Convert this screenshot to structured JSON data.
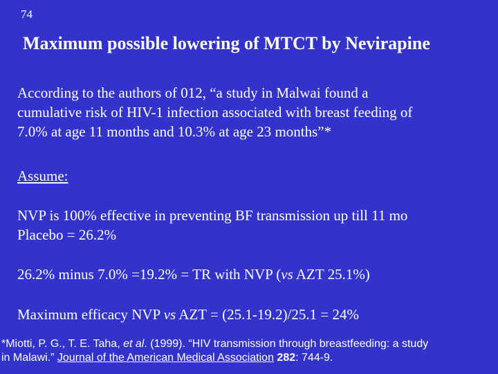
{
  "slide": {
    "number": "74",
    "title": "Maximum possible lowering of MTCT by Nevirapine",
    "quote_lines": [
      "According to the authors of 012, “a study in Malwai found a",
      "cumulative risk of HIV-1 infection associated with breast feeding of",
      "7.0% at age 11 months and 10.3% at age 23 months”*"
    ],
    "assume_heading": "Assume:",
    "assumptions": [
      "NVP is 100% effective in preventing BF transmission up till 11 mo",
      "Placebo =  26.2%"
    ],
    "calculation": {
      "prefix": "26.2% minus 7.0% =19.2% = TR with NVP (",
      "vs": "vs",
      "suffix": " AZT 25.1%)"
    },
    "efficacy": {
      "prefix": "Maximum efficacy NVP ",
      "vs": "vs",
      "suffix": " AZT = (25.1-19.2)/25.1 = 24%"
    },
    "footnote": {
      "line1_part1": "*Miotti, P. G., T. E. Taha, ",
      "et_al": "et al",
      "line1_part2": ". (1999). “HIV transmission through breastfeeding: a study",
      "line2_part1": "in Malawi.” ",
      "journal": "Journal of the American Medical Association",
      "space": " ",
      "volume": "282",
      "pages": ": 744-9."
    }
  }
}
